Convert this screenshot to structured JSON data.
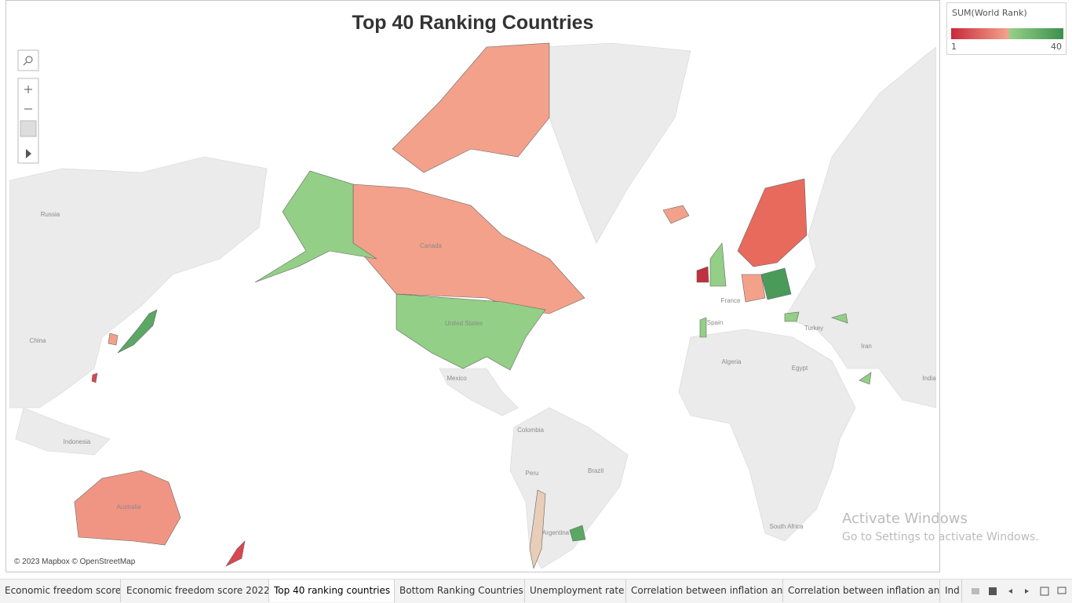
{
  "header": {
    "title": "Top 40 Ranking Countries"
  },
  "legend": {
    "title": "SUM(World Rank)",
    "min": "1",
    "max": "40"
  },
  "map": {
    "labels": [
      "Russia",
      "China",
      "Indonesia",
      "Canada",
      "United States",
      "Mexico",
      "Colombia",
      "Brazil",
      "Peru",
      "Argentina",
      "Australia",
      "Algeria",
      "Egypt",
      "Turkey",
      "Iran",
      "India",
      "South Africa",
      "Spain",
      "France"
    ],
    "attribution": "© 2023 Mapbox © OpenStreetMap"
  },
  "tabs": [
    "Economic freedom score",
    "Economic freedom score 2022",
    "Top 40 ranking countries",
    "Bottom Ranking Countries",
    "Unemployment rate",
    "Correlation between inflation an...",
    "Correlation between inflation an...",
    "Ind"
  ],
  "watermark": {
    "title": "Activate Windows",
    "subtitle": "Go to Settings to activate Windows."
  }
}
